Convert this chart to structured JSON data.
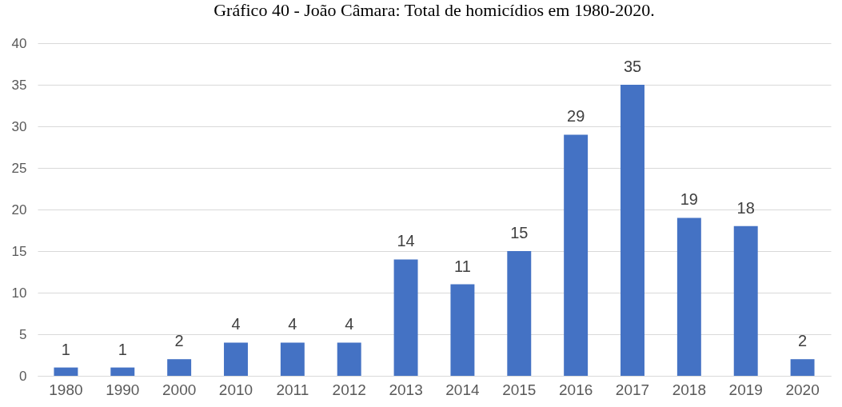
{
  "chart_data": {
    "type": "bar",
    "title": "Gráfico 40 - João Câmara: Total de homicídios em 1980-2020.",
    "categories": [
      "1980",
      "1990",
      "2000",
      "2010",
      "2011",
      "2012",
      "2013",
      "2014",
      "2015",
      "2016",
      "2017",
      "2018",
      "2019",
      "2020"
    ],
    "values": [
      1,
      1,
      2,
      4,
      4,
      4,
      14,
      11,
      15,
      29,
      35,
      19,
      18,
      2
    ],
    "color": "#4472c4",
    "ylim": [
      0,
      40
    ],
    "yticks": [
      0,
      5,
      10,
      15,
      20,
      25,
      30,
      35,
      40
    ],
    "grid": "y",
    "data_labels": true
  }
}
